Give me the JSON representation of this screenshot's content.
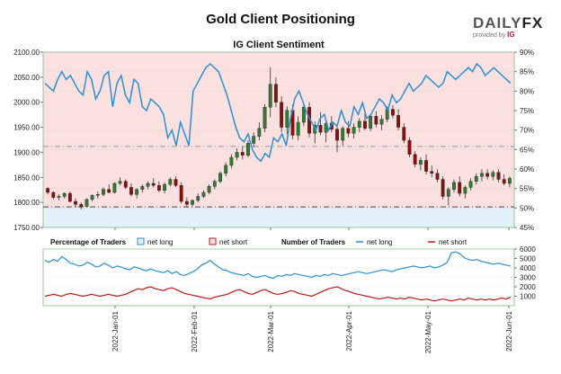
{
  "header": {
    "title": "Gold Client Positioning",
    "brand_a": "DAILY",
    "brand_b": "FX",
    "provided_by": "provided by",
    "provider": "IG"
  },
  "colors": {
    "net_long": "#2b8fd4",
    "net_short": "#c0161b",
    "long_zone": "#e3f1fb",
    "short_zone": "#fbe0e0",
    "candle_up": "#2e7d32",
    "candle_down": "#8a1010"
  },
  "chart_data": [
    {
      "type": "candlestick+line",
      "title": "IG Client Sentiment",
      "y_left": {
        "ticks": [
          "1750.00",
          "1800.00",
          "1850.00",
          "1900.00",
          "1950.00",
          "2000.00",
          "2050.00",
          "2100.00"
        ],
        "range": [
          1750,
          2100
        ]
      },
      "y_right": {
        "ticks": [
          "45%",
          "50%",
          "55%",
          "60%",
          "65%",
          "70%",
          "75%",
          "80%",
          "85%",
          "90%"
        ],
        "range": [
          45,
          90
        ]
      },
      "x_ticks": [
        "2022-Jan-01",
        "2022-Feb-01",
        "2022-Mar-01",
        "2022-Apr-01",
        "2022-May-01",
        "2022-Jun-01"
      ],
      "reference_lines": {
        "price": 1791,
        "percent": 65.8
      },
      "net_long_pct": [
        82,
        81,
        80,
        83,
        85,
        83,
        84,
        82,
        80,
        79,
        85,
        83,
        78,
        80,
        84,
        85,
        76,
        82,
        84,
        79,
        77,
        83,
        82,
        76,
        75,
        78,
        77,
        76,
        74,
        68,
        70,
        66,
        72,
        69,
        66,
        80,
        82,
        84,
        86,
        87,
        86,
        85,
        82,
        79,
        75,
        71,
        68,
        67,
        69,
        65,
        63,
        62,
        64,
        63,
        68,
        67,
        69,
        66,
        73,
        78,
        80,
        77,
        74,
        72,
        70,
        73,
        74,
        70,
        72,
        71,
        75,
        72,
        71,
        76,
        74,
        77,
        73,
        74,
        76,
        78,
        77,
        75,
        79,
        77,
        78,
        80,
        82,
        80,
        81,
        82,
        84,
        83,
        82,
        81,
        82,
        85,
        84,
        83,
        84,
        85,
        86,
        85,
        87,
        86,
        84,
        85,
        86,
        85,
        84,
        83,
        82
      ],
      "candles": [
        [
          1828,
          1830,
          1816,
          1820
        ],
        [
          1820,
          1822,
          1806,
          1810
        ],
        [
          1810,
          1816,
          1804,
          1812
        ],
        [
          1812,
          1820,
          1808,
          1818
        ],
        [
          1818,
          1822,
          1800,
          1802
        ],
        [
          1802,
          1808,
          1790,
          1796
        ],
        [
          1796,
          1800,
          1786,
          1792
        ],
        [
          1792,
          1808,
          1790,
          1806
        ],
        [
          1806,
          1816,
          1802,
          1814
        ],
        [
          1814,
          1822,
          1808,
          1816
        ],
        [
          1816,
          1830,
          1812,
          1826
        ],
        [
          1826,
          1836,
          1818,
          1820
        ],
        [
          1820,
          1840,
          1818,
          1838
        ],
        [
          1838,
          1850,
          1834,
          1842
        ],
        [
          1842,
          1846,
          1826,
          1830
        ],
        [
          1830,
          1838,
          1812,
          1816
        ],
        [
          1816,
          1828,
          1808,
          1826
        ],
        [
          1826,
          1836,
          1820,
          1832
        ],
        [
          1832,
          1842,
          1826,
          1838
        ],
        [
          1838,
          1848,
          1830,
          1834
        ],
        [
          1834,
          1842,
          1820,
          1824
        ],
        [
          1824,
          1840,
          1818,
          1836
        ],
        [
          1836,
          1850,
          1832,
          1846
        ],
        [
          1846,
          1852,
          1830,
          1834
        ],
        [
          1834,
          1840,
          1798,
          1802
        ],
        [
          1802,
          1810,
          1790,
          1796
        ],
        [
          1796,
          1806,
          1792,
          1804
        ],
        [
          1804,
          1818,
          1800,
          1812
        ],
        [
          1812,
          1824,
          1808,
          1820
        ],
        [
          1820,
          1836,
          1816,
          1832
        ],
        [
          1832,
          1846,
          1826,
          1842
        ],
        [
          1842,
          1862,
          1838,
          1858
        ],
        [
          1858,
          1880,
          1852,
          1874
        ],
        [
          1874,
          1896,
          1868,
          1890
        ],
        [
          1890,
          1908,
          1884,
          1900
        ],
        [
          1900,
          1912,
          1886,
          1894
        ],
        [
          1894,
          1924,
          1890,
          1918
        ],
        [
          1918,
          1940,
          1910,
          1932
        ],
        [
          1932,
          1960,
          1924,
          1948
        ],
        [
          1948,
          1996,
          1940,
          1990
        ],
        [
          1990,
          2070,
          1970,
          2036
        ],
        [
          2036,
          2050,
          1990,
          2000
        ],
        [
          2000,
          2012,
          1940,
          1950
        ],
        [
          1950,
          1992,
          1936,
          1984
        ],
        [
          1984,
          1996,
          1926,
          1934
        ],
        [
          1934,
          1972,
          1924,
          1960
        ],
        [
          1960,
          1998,
          1952,
          1990
        ],
        [
          1990,
          2000,
          1930,
          1938
        ],
        [
          1938,
          1962,
          1918,
          1954
        ],
        [
          1954,
          1980,
          1934,
          1940
        ],
        [
          1940,
          1966,
          1920,
          1958
        ],
        [
          1958,
          1972,
          1940,
          1946
        ],
        [
          1946,
          1954,
          1900,
          1924
        ],
        [
          1924,
          1952,
          1912,
          1948
        ],
        [
          1948,
          1962,
          1930,
          1938
        ],
        [
          1938,
          1958,
          1928,
          1950
        ],
        [
          1950,
          1968,
          1940,
          1962
        ],
        [
          1962,
          1978,
          1944,
          1948
        ],
        [
          1948,
          1976,
          1942,
          1972
        ],
        [
          1972,
          1982,
          1950,
          1956
        ],
        [
          1956,
          1974,
          1944,
          1966
        ],
        [
          1966,
          1992,
          1960,
          1986
        ],
        [
          1986,
          1994,
          1968,
          1974
        ],
        [
          1974,
          1986,
          1944,
          1950
        ],
        [
          1950,
          1958,
          1918,
          1924
        ],
        [
          1924,
          1930,
          1890,
          1896
        ],
        [
          1896,
          1902,
          1870,
          1876
        ],
        [
          1876,
          1890,
          1864,
          1884
        ],
        [
          1884,
          1896,
          1856,
          1862
        ],
        [
          1862,
          1874,
          1850,
          1858
        ],
        [
          1858,
          1866,
          1840,
          1846
        ],
        [
          1846,
          1852,
          1806,
          1812
        ],
        [
          1812,
          1830,
          1794,
          1826
        ],
        [
          1826,
          1846,
          1820,
          1840
        ],
        [
          1840,
          1852,
          1812,
          1818
        ],
        [
          1818,
          1834,
          1808,
          1830
        ],
        [
          1830,
          1848,
          1824,
          1842
        ],
        [
          1842,
          1858,
          1836,
          1852
        ],
        [
          1852,
          1866,
          1842,
          1858
        ],
        [
          1858,
          1866,
          1846,
          1852
        ],
        [
          1852,
          1864,
          1844,
          1860
        ],
        [
          1860,
          1866,
          1840,
          1846
        ],
        [
          1846,
          1856,
          1834,
          1838
        ],
        [
          1838,
          1852,
          1830,
          1848
        ]
      ]
    },
    {
      "type": "line",
      "legend": {
        "pct_label": "Percentage of Traders",
        "count_label": "Number of Traders",
        "net_long": "net long",
        "net_short": "net short"
      },
      "y_right": {
        "ticks": [
          "1000",
          "2000",
          "3000",
          "4000",
          "5000",
          "6000"
        ],
        "range": [
          0,
          6000
        ]
      },
      "series": [
        {
          "name": "net long",
          "values": [
            4800,
            4600,
            4900,
            4700,
            5200,
            4900,
            4500,
            4400,
            4200,
            4300,
            4600,
            4400,
            4100,
            4200,
            4500,
            4300,
            4000,
            4200,
            4100,
            3900,
            3800,
            4100,
            4000,
            3800,
            3700,
            3900,
            3700,
            3600,
            3500,
            3700,
            3400,
            3600,
            3300,
            3200,
            3400,
            3600,
            3900,
            4300,
            4500,
            4800,
            4400,
            4100,
            3800,
            3700,
            3500,
            3400,
            3300,
            3200,
            3400,
            3100,
            3000,
            3100,
            3200,
            3000,
            2900,
            3200,
            3100,
            3300,
            3200,
            3400,
            3300,
            3200,
            3100,
            3000,
            3200,
            3100,
            3300,
            3200,
            3400,
            3300,
            3200,
            3300,
            3400,
            3500,
            3600,
            3500,
            3400,
            3500,
            3600,
            3700,
            3800,
            3700,
            3600,
            3800,
            3900,
            4000,
            4100,
            4200,
            4100,
            4000,
            4100,
            4200,
            4000,
            4100,
            4300,
            4600,
            5600,
            5700,
            5500,
            5100,
            4900,
            4800,
            4900,
            4700,
            4600,
            4500,
            4400,
            4500,
            4400,
            4300,
            4200
          ]
        },
        {
          "name": "net short",
          "values": [
            1000,
            1100,
            1200,
            1100,
            1000,
            1200,
            1300,
            1200,
            1100,
            1000,
            1100,
            1200,
            1100,
            1000,
            1100,
            1200,
            1100,
            1000,
            1100,
            1200,
            1400,
            1600,
            1800,
            1700,
            1900,
            2000,
            1800,
            1700,
            1600,
            1800,
            1900,
            1700,
            1500,
            1300,
            1200,
            1100,
            1000,
            900,
            800,
            700,
            900,
            1000,
            1100,
            1200,
            1400,
            1600,
            1700,
            1500,
            1300,
            1200,
            1400,
            1600,
            1700,
            1500,
            1300,
            1200,
            1300,
            1400,
            1600,
            1500,
            1300,
            1200,
            1100,
            1000,
            1200,
            1400,
            1600,
            1800,
            1900,
            2000,
            1800,
            1600,
            1500,
            1300,
            1200,
            1100,
            1000,
            900,
            800,
            700,
            800,
            900,
            800,
            700,
            800,
            700,
            900,
            800,
            700,
            600,
            700,
            600,
            500,
            600,
            700,
            600,
            500,
            600,
            700,
            600,
            800,
            700,
            600,
            700,
            600,
            700,
            600,
            700,
            800,
            700,
            900
          ]
        }
      ]
    }
  ]
}
